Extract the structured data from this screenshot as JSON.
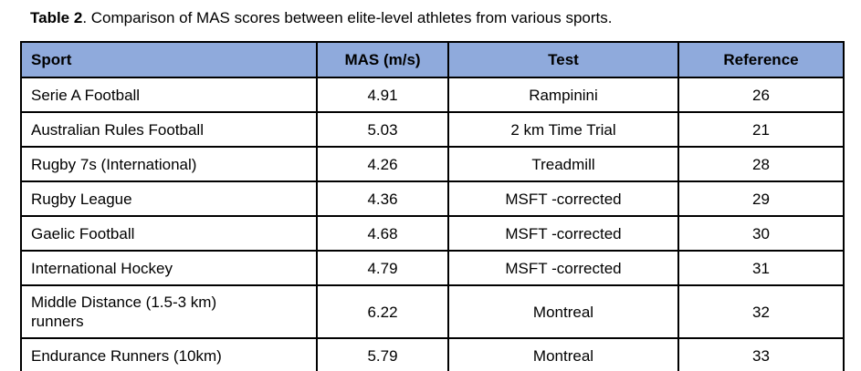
{
  "caption": {
    "bold": "Table 2",
    "rest": ". Comparison of MAS scores between elite-level athletes from various sports."
  },
  "table": {
    "columns": [
      "Sport",
      "MAS (m/s)",
      "Test",
      "Reference"
    ],
    "rows": [
      {
        "sport": "Serie A Football",
        "mas": "4.91",
        "test": "Rampinini",
        "reference": "26"
      },
      {
        "sport": "Australian Rules Football",
        "mas": "5.03",
        "test": "2 km Time Trial",
        "reference": "21"
      },
      {
        "sport": "Rugby 7s (International)",
        "mas": "4.26",
        "test": "Treadmill",
        "reference": "28"
      },
      {
        "sport": "Rugby League",
        "mas": "4.36",
        "test": "MSFT -corrected",
        "reference": "29"
      },
      {
        "sport": "Gaelic Football",
        "mas": "4.68",
        "test": "MSFT -corrected",
        "reference": "30"
      },
      {
        "sport": "International Hockey",
        "mas": "4.79",
        "test": "MSFT -corrected",
        "reference": "31"
      },
      {
        "sport": "Middle Distance (1.5-3 km)\nrunners",
        "mas": "6.22",
        "test": "Montreal",
        "reference": "32"
      },
      {
        "sport": "Endurance Runners (10km)",
        "mas": "5.79",
        "test": "Montreal",
        "reference": "33"
      }
    ],
    "colors": {
      "header_bg": "#8faadc",
      "border": "#000000",
      "text": "#000000"
    }
  },
  "chart_data": {
    "type": "table",
    "title": "Table 2. Comparison of MAS scores between elite-level athletes from various sports.",
    "categories": [
      "Serie A Football",
      "Australian Rules Football",
      "Rugby 7s (International)",
      "Rugby League",
      "Gaelic Football",
      "International Hockey",
      "Middle Distance (1.5-3 km) runners",
      "Endurance Runners (10km)"
    ],
    "series": [
      {
        "name": "MAS (m/s)",
        "values": [
          4.91,
          5.03,
          4.26,
          4.36,
          4.68,
          4.79,
          6.22,
          5.79
        ]
      },
      {
        "name": "Test",
        "values": [
          "Rampinini",
          "2 km Time Trial",
          "Treadmill",
          "MSFT -corrected",
          "MSFT -corrected",
          "MSFT -corrected",
          "Montreal",
          "Montreal"
        ]
      },
      {
        "name": "Reference",
        "values": [
          26,
          21,
          28,
          29,
          30,
          31,
          32,
          33
        ]
      }
    ]
  }
}
